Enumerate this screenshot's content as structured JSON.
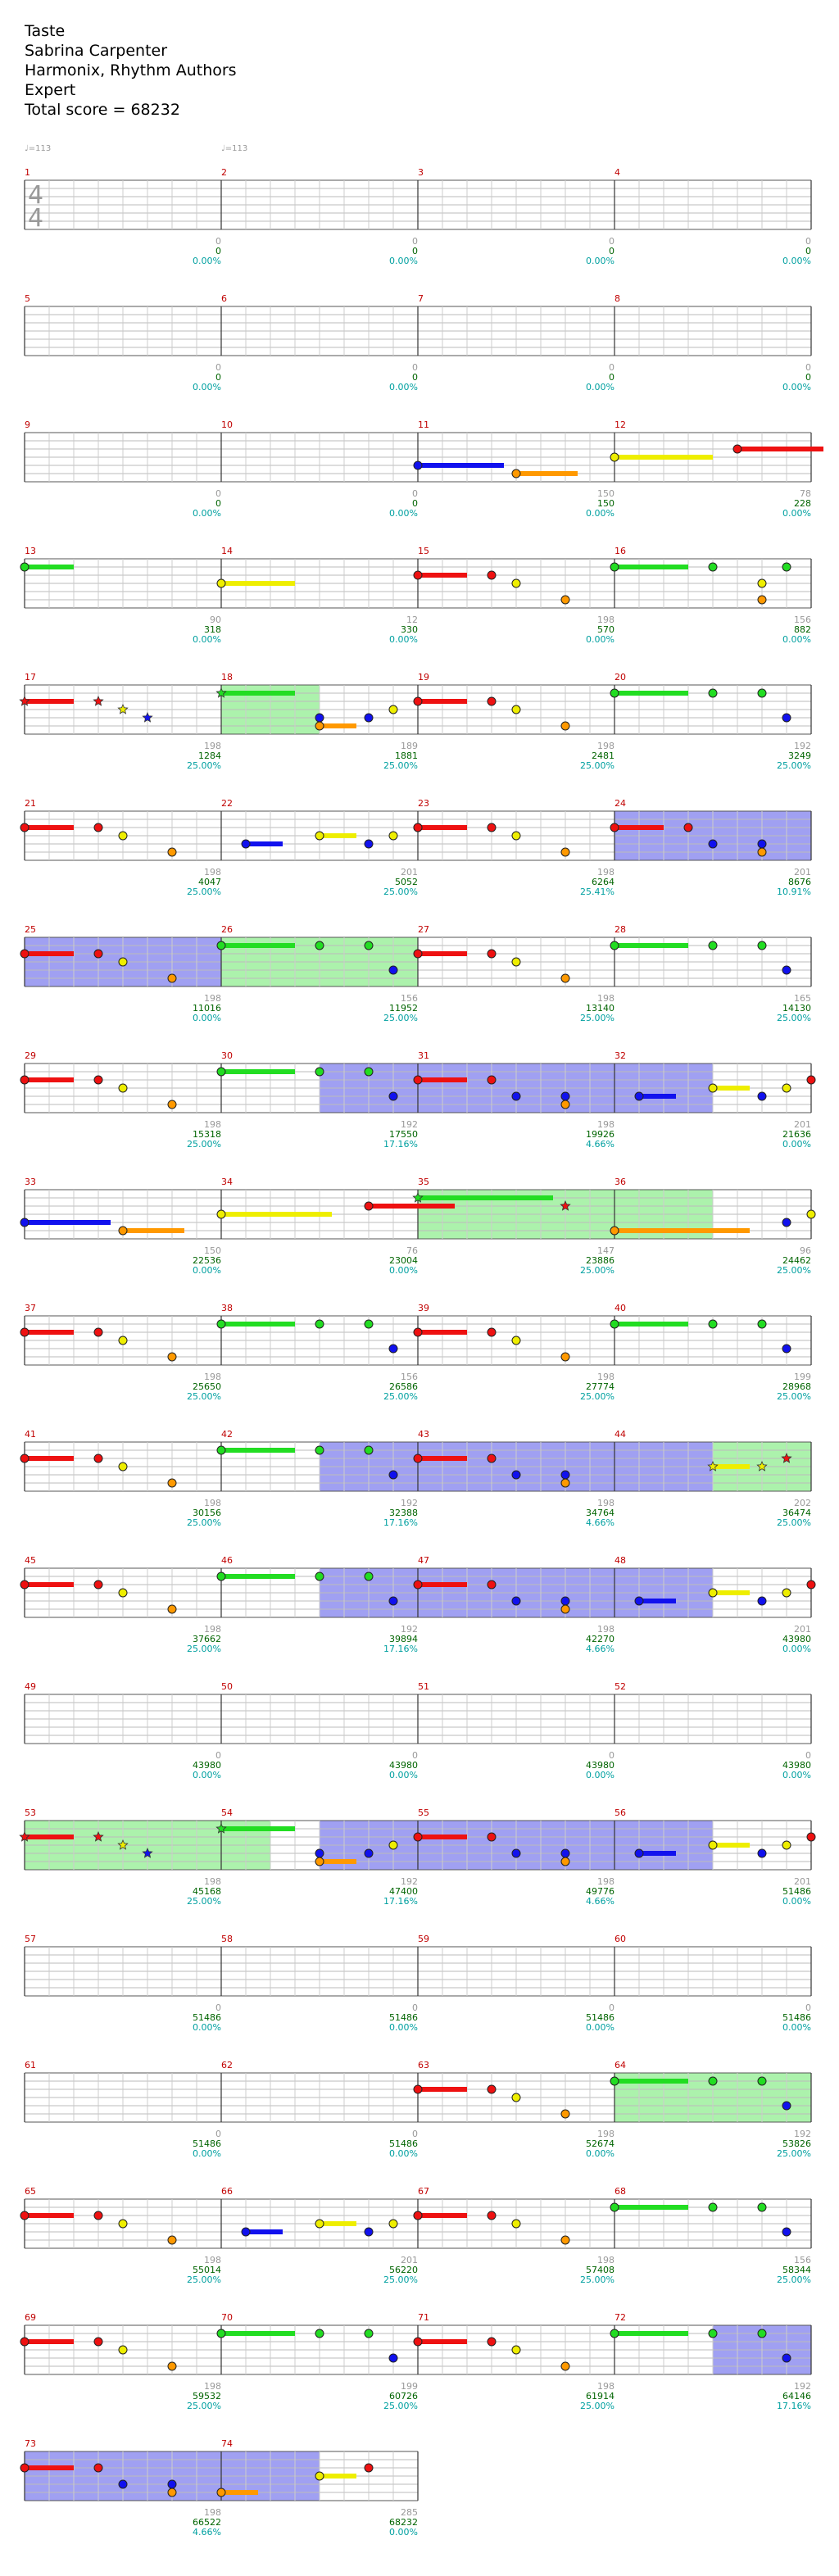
{
  "header": {
    "song_title": "Taste",
    "artist": "Sabrina Carpenter",
    "charter": "Harmonix, Rhythm Authors",
    "difficulty": "Expert",
    "total_score": "Total score = 68232"
  },
  "tempo_marks": [
    {
      "measure": 1,
      "label": "♩=113"
    },
    {
      "measure": 2,
      "label": "♩=113"
    }
  ],
  "time_signature": {
    "top": "4",
    "bottom": "4"
  },
  "lane_colors": {
    "green": "#22dd22",
    "red": "#ee1111",
    "yellow": "#eeee00",
    "blue": "#1111ee",
    "orange": "#ff9900"
  },
  "overlay_colors": {
    "overdrive": "#90ee90",
    "solo": "#8080ee",
    "both": "#5f9fbf"
  },
  "rows": [
    {
      "measures": [
        {
          "n": "1",
          "gems": "0",
          "score": "0",
          "pct": "0.00%"
        },
        {
          "n": "2",
          "gems": "0",
          "score": "0",
          "pct": "0.00%"
        },
        {
          "n": "3",
          "gems": "0",
          "score": "0",
          "pct": "0.00%"
        },
        {
          "n": "4",
          "gems": "0",
          "score": "0",
          "pct": "0.00%"
        }
      ]
    },
    {
      "measures": [
        {
          "n": "5",
          "gems": "0",
          "score": "0",
          "pct": "0.00%"
        },
        {
          "n": "6",
          "gems": "0",
          "score": "0",
          "pct": "0.00%"
        },
        {
          "n": "7",
          "gems": "0",
          "score": "0",
          "pct": "0.00%"
        },
        {
          "n": "8",
          "gems": "0",
          "score": "0",
          "pct": "0.00%"
        }
      ]
    },
    {
      "measures": [
        {
          "n": "9",
          "gems": "0",
          "score": "0",
          "pct": "0.00%"
        },
        {
          "n": "10",
          "gems": "0",
          "score": "0",
          "pct": "0.00%"
        },
        {
          "n": "11",
          "gems": "150",
          "score": "150",
          "pct": "0.00%"
        },
        {
          "n": "12",
          "gems": "78",
          "score": "228",
          "pct": "0.00%"
        }
      ]
    },
    {
      "measures": [
        {
          "n": "13",
          "gems": "90",
          "score": "318",
          "pct": "0.00%"
        },
        {
          "n": "14",
          "gems": "12",
          "score": "330",
          "pct": "0.00%"
        },
        {
          "n": "15",
          "gems": "198",
          "score": "570",
          "pct": "0.00%"
        },
        {
          "n": "16",
          "gems": "156",
          "score": "882",
          "pct": "0.00%"
        }
      ]
    },
    {
      "measures": [
        {
          "n": "17",
          "gems": "198",
          "score": "1284",
          "pct": "25.00%"
        },
        {
          "n": "18",
          "gems": "189",
          "score": "1881",
          "pct": "25.00%"
        },
        {
          "n": "19",
          "gems": "198",
          "score": "2481",
          "pct": "25.00%"
        },
        {
          "n": "20",
          "gems": "192",
          "score": "3249",
          "pct": "25.00%"
        }
      ]
    },
    {
      "measures": [
        {
          "n": "21",
          "gems": "198",
          "score": "4047",
          "pct": "25.00%"
        },
        {
          "n": "22",
          "gems": "201",
          "score": "5052",
          "pct": "25.00%"
        },
        {
          "n": "23",
          "gems": "198",
          "score": "6264",
          "pct": "25.41%"
        },
        {
          "n": "24",
          "gems": "201",
          "score": "8676",
          "pct": "10.91%"
        }
      ]
    },
    {
      "measures": [
        {
          "n": "25",
          "gems": "198",
          "score": "11016",
          "pct": "0.00%"
        },
        {
          "n": "26",
          "gems": "156",
          "score": "11952",
          "pct": "25.00%"
        },
        {
          "n": "27",
          "gems": "198",
          "score": "13140",
          "pct": "25.00%"
        },
        {
          "n": "28",
          "gems": "165",
          "score": "14130",
          "pct": "25.00%"
        }
      ]
    },
    {
      "measures": [
        {
          "n": "29",
          "gems": "198",
          "score": "15318",
          "pct": "25.00%"
        },
        {
          "n": "30",
          "gems": "192",
          "score": "17550",
          "pct": "17.16%"
        },
        {
          "n": "31",
          "gems": "198",
          "score": "19926",
          "pct": "4.66%"
        },
        {
          "n": "32",
          "gems": "201",
          "score": "21636",
          "pct": "0.00%"
        }
      ]
    },
    {
      "measures": [
        {
          "n": "33",
          "gems": "150",
          "score": "22536",
          "pct": "0.00%"
        },
        {
          "n": "34",
          "gems": "76",
          "score": "23004",
          "pct": "0.00%"
        },
        {
          "n": "35",
          "gems": "147",
          "score": "23886",
          "pct": "25.00%"
        },
        {
          "n": "36",
          "gems": "96",
          "score": "24462",
          "pct": "25.00%"
        }
      ]
    },
    {
      "measures": [
        {
          "n": "37",
          "gems": "198",
          "score": "25650",
          "pct": "25.00%"
        },
        {
          "n": "38",
          "gems": "156",
          "score": "26586",
          "pct": "25.00%"
        },
        {
          "n": "39",
          "gems": "198",
          "score": "27774",
          "pct": "25.00%"
        },
        {
          "n": "40",
          "gems": "199",
          "score": "28968",
          "pct": "25.00%"
        }
      ]
    },
    {
      "measures": [
        {
          "n": "41",
          "gems": "198",
          "score": "30156",
          "pct": "25.00%"
        },
        {
          "n": "42",
          "gems": "192",
          "score": "32388",
          "pct": "17.16%"
        },
        {
          "n": "43",
          "gems": "198",
          "score": "34764",
          "pct": "4.66%"
        },
        {
          "n": "44",
          "gems": "202",
          "score": "36474",
          "pct": "25.00%"
        }
      ]
    },
    {
      "measures": [
        {
          "n": "45",
          "gems": "198",
          "score": "37662",
          "pct": "25.00%"
        },
        {
          "n": "46",
          "gems": "192",
          "score": "39894",
          "pct": "17.16%"
        },
        {
          "n": "47",
          "gems": "198",
          "score": "42270",
          "pct": "4.66%"
        },
        {
          "n": "48",
          "gems": "201",
          "score": "43980",
          "pct": "0.00%"
        }
      ]
    },
    {
      "measures": [
        {
          "n": "49",
          "gems": "0",
          "score": "43980",
          "pct": "0.00%"
        },
        {
          "n": "50",
          "gems": "0",
          "score": "43980",
          "pct": "0.00%"
        },
        {
          "n": "51",
          "gems": "0",
          "score": "43980",
          "pct": "0.00%"
        },
        {
          "n": "52",
          "gems": "0",
          "score": "43980",
          "pct": "0.00%"
        }
      ]
    },
    {
      "measures": [
        {
          "n": "53",
          "gems": "198",
          "score": "45168",
          "pct": "25.00%"
        },
        {
          "n": "54",
          "gems": "192",
          "score": "47400",
          "pct": "17.16%"
        },
        {
          "n": "55",
          "gems": "198",
          "score": "49776",
          "pct": "4.66%"
        },
        {
          "n": "56",
          "gems": "201",
          "score": "51486",
          "pct": "0.00%"
        }
      ]
    },
    {
      "measures": [
        {
          "n": "57",
          "gems": "0",
          "score": "51486",
          "pct": "0.00%"
        },
        {
          "n": "58",
          "gems": "0",
          "score": "51486",
          "pct": "0.00%"
        },
        {
          "n": "59",
          "gems": "0",
          "score": "51486",
          "pct": "0.00%"
        },
        {
          "n": "60",
          "gems": "0",
          "score": "51486",
          "pct": "0.00%"
        }
      ]
    },
    {
      "measures": [
        {
          "n": "61",
          "gems": "0",
          "score": "51486",
          "pct": "0.00%"
        },
        {
          "n": "62",
          "gems": "0",
          "score": "51486",
          "pct": "0.00%"
        },
        {
          "n": "63",
          "gems": "198",
          "score": "52674",
          "pct": "0.00%"
        },
        {
          "n": "64",
          "gems": "192",
          "score": "53826",
          "pct": "25.00%"
        }
      ]
    },
    {
      "measures": [
        {
          "n": "65",
          "gems": "198",
          "score": "55014",
          "pct": "25.00%"
        },
        {
          "n": "66",
          "gems": "201",
          "score": "56220",
          "pct": "25.00%"
        },
        {
          "n": "67",
          "gems": "198",
          "score": "57408",
          "pct": "25.00%"
        },
        {
          "n": "68",
          "gems": "156",
          "score": "58344",
          "pct": "25.00%"
        }
      ]
    },
    {
      "measures": [
        {
          "n": "69",
          "gems": "198",
          "score": "59532",
          "pct": "25.00%"
        },
        {
          "n": "70",
          "gems": "199",
          "score": "60726",
          "pct": "25.00%"
        },
        {
          "n": "71",
          "gems": "198",
          "score": "61914",
          "pct": "25.00%"
        },
        {
          "n": "72",
          "gems": "192",
          "score": "64146",
          "pct": "17.16%"
        }
      ]
    },
    {
      "measures": [
        {
          "n": "73",
          "gems": "198",
          "score": "66522",
          "pct": "4.66%"
        },
        {
          "n": "74",
          "gems": "285",
          "score": "68232",
          "pct": "0.00%"
        }
      ]
    }
  ],
  "sections": {
    "overdrive": [
      [
        17,
        1,
        18,
        0.5
      ],
      [
        26,
        0,
        27,
        0
      ],
      [
        35,
        0,
        36,
        0.5
      ],
      [
        44,
        0.5,
        45,
        0
      ],
      [
        53,
        0,
        54,
        0.25
      ],
      [
        64,
        0,
        64,
        1.0
      ]
    ],
    "solo": [
      [
        24,
        0,
        25,
        0
      ],
      [
        25,
        0,
        26,
        0
      ],
      [
        30,
        0.5,
        32,
        0.5
      ],
      [
        42,
        0.5,
        44,
        0.5
      ],
      [
        46,
        0.5,
        48,
        0.5
      ],
      [
        54,
        0.5,
        56,
        0.5
      ],
      [
        72,
        0.5,
        73,
        0
      ],
      [
        73,
        0,
        74,
        0.5
      ]
    ]
  }
}
